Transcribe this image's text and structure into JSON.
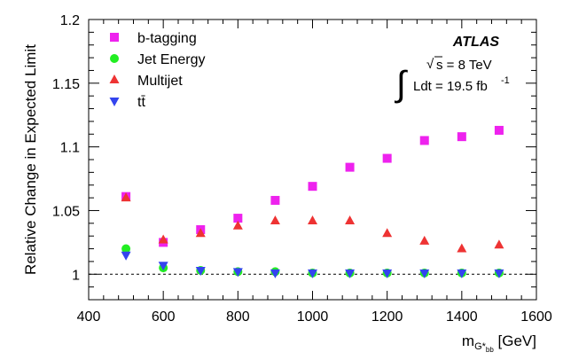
{
  "chart_data": {
    "type": "scatter",
    "xlabel": "m",
    "xlabel_subscript": "G*",
    "xlabel_subsubscript": "bb",
    "xlabel_unit": "[GeV]",
    "ylabel": "Relative Change in Expected Limit",
    "xlim": [
      400,
      1600
    ],
    "ylim": [
      0.98,
      1.2
    ],
    "xticks": [
      400,
      600,
      800,
      1000,
      1200,
      1400,
      1600
    ],
    "yticks": [
      1,
      1.05,
      1.1,
      1.15,
      1.2
    ],
    "ytick_labels": [
      "1",
      "1.05",
      "1.1",
      "1.15",
      "1.2"
    ],
    "reference_line": 1,
    "grid": false,
    "legend_position": "top-left",
    "series": [
      {
        "name": "b-tagging",
        "marker": "square",
        "color": "#ee22ee",
        "x": [
          500,
          600,
          700,
          800,
          900,
          1000,
          1100,
          1200,
          1300,
          1400,
          1500
        ],
        "y": [
          1.061,
          1.025,
          1.035,
          1.044,
          1.058,
          1.069,
          1.084,
          1.091,
          1.105,
          1.108,
          1.113
        ]
      },
      {
        "name": "Jet Energy",
        "marker": "circle",
        "color": "#22ee22",
        "x": [
          500,
          600,
          700,
          800,
          900,
          1000,
          1100,
          1200,
          1300,
          1400,
          1500
        ],
        "y": [
          1.02,
          1.005,
          1.003,
          1.002,
          1.002,
          1.001,
          1.001,
          1.001,
          1.001,
          1.001,
          1.001
        ]
      },
      {
        "name": "Multijet",
        "marker": "triangle-up",
        "color": "#ee3333",
        "x": [
          500,
          600,
          700,
          800,
          900,
          1000,
          1100,
          1200,
          1300,
          1400,
          1500
        ],
        "y": [
          1.06,
          1.027,
          1.032,
          1.038,
          1.042,
          1.042,
          1.042,
          1.032,
          1.026,
          1.02,
          1.023
        ]
      },
      {
        "name": "tt̄",
        "marker": "triangle-down",
        "color": "#3344ee",
        "x": [
          500,
          600,
          700,
          800,
          900,
          1000,
          1100,
          1200,
          1300,
          1400,
          1500
        ],
        "y": [
          1.015,
          1.007,
          1.003,
          1.002,
          1.001,
          1.001,
          1.001,
          1.001,
          1.001,
          1.001,
          1.001
        ]
      }
    ],
    "annotations": {
      "experiment": "ATLAS",
      "energy_prefix": "√",
      "energy": "s = 8 TeV",
      "lumi_integral": "∫",
      "lumi": "Ldt = 19.5 fb",
      "lumi_exponent": "-1"
    }
  }
}
